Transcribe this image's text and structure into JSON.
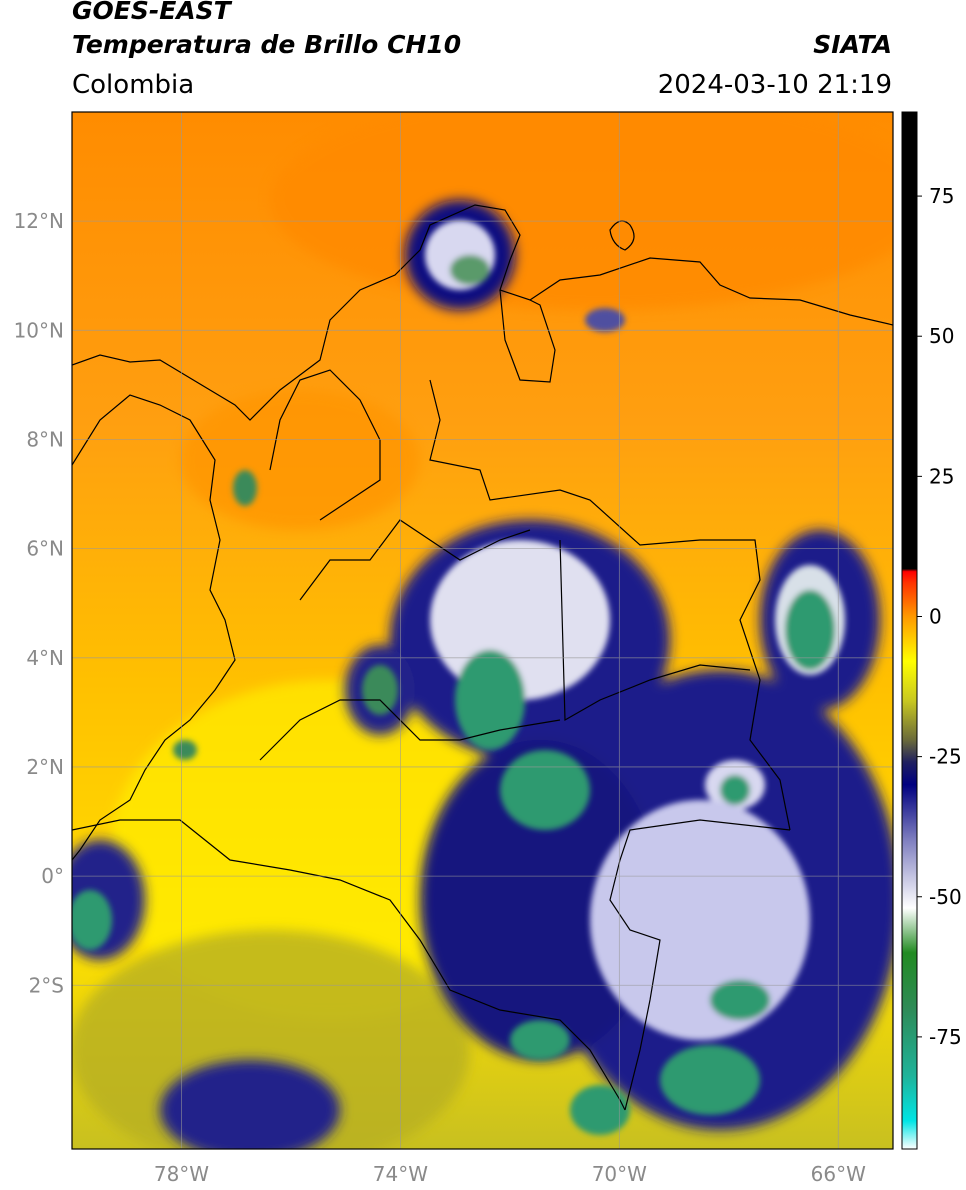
{
  "header": {
    "title_line1": "GOES-EAST",
    "title_line2": "Temperatura de Brillo CH10",
    "subtitle": "Colombia",
    "source": "SIATA",
    "datetime": "2024-03-10 21:19"
  },
  "map": {
    "lon_range": [
      -80,
      -65
    ],
    "lat_range": [
      -5,
      14
    ],
    "lon_ticks": [
      {
        "value": -78,
        "label": "78°W"
      },
      {
        "value": -74,
        "label": "74°W"
      },
      {
        "value": -70,
        "label": "70°W"
      },
      {
        "value": -66,
        "label": "66°W"
      }
    ],
    "lat_ticks": [
      {
        "value": 12,
        "label": "12°N"
      },
      {
        "value": 10,
        "label": "10°N"
      },
      {
        "value": 8,
        "label": "8°N"
      },
      {
        "value": 6,
        "label": "6°N"
      },
      {
        "value": 4,
        "label": "4°N"
      },
      {
        "value": 2,
        "label": "2°N"
      },
      {
        "value": 0,
        "label": "0°"
      },
      {
        "value": -2,
        "label": "2°S"
      }
    ],
    "colorbar": {
      "range": [
        -95,
        90
      ],
      "ticks": [
        {
          "value": 75,
          "label": "75"
        },
        {
          "value": 50,
          "label": "50"
        },
        {
          "value": 25,
          "label": "25"
        },
        {
          "value": 0,
          "label": "0"
        },
        {
          "value": -25,
          "label": "-25"
        },
        {
          "value": -50,
          "label": "-50"
        },
        {
          "value": -75,
          "label": "-75"
        }
      ],
      "stops": [
        {
          "value": -95,
          "color": "#ffffff"
        },
        {
          "value": -90,
          "color": "#00e5e5"
        },
        {
          "value": -82,
          "color": "#1fb39a"
        },
        {
          "value": -70,
          "color": "#2e8b57"
        },
        {
          "value": -60,
          "color": "#228b22"
        },
        {
          "value": -52,
          "color": "#ffffff"
        },
        {
          "value": -40,
          "color": "#8080c0"
        },
        {
          "value": -30,
          "color": "#000080"
        },
        {
          "value": -26,
          "color": "#202060"
        },
        {
          "value": -22,
          "color": "#6b6b3a"
        },
        {
          "value": -15,
          "color": "#c8c820"
        },
        {
          "value": -8,
          "color": "#ffff00"
        },
        {
          "value": 0,
          "color": "#ff9900"
        },
        {
          "value": 6,
          "color": "#ff3300"
        },
        {
          "value": 8,
          "color": "#ff0000"
        },
        {
          "value": 8.5,
          "color": "#000000"
        },
        {
          "value": 90,
          "color": "#000000"
        }
      ]
    }
  }
}
